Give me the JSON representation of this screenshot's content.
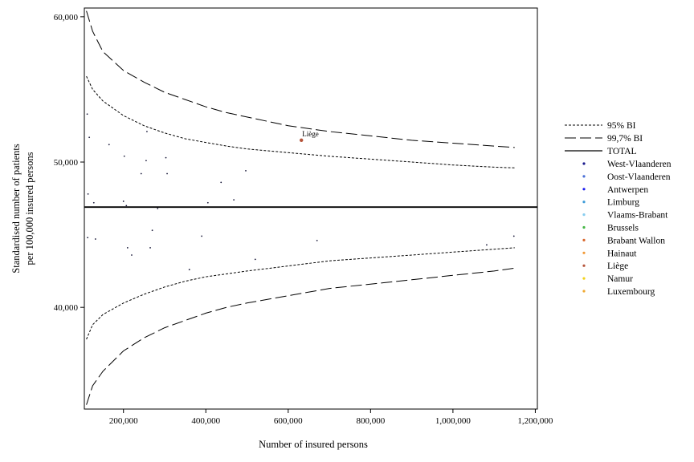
{
  "chart_data": {
    "type": "scatter",
    "xlabel": "Number of insured persons",
    "ylabel_lines": [
      "Standardised number of patients",
      "per 100,000 insured persons"
    ],
    "xlim": [
      105000,
      1205000
    ],
    "ylim": [
      33000,
      60600
    ],
    "x_ticks": [
      200000,
      400000,
      600000,
      800000,
      1000000,
      1200000
    ],
    "x_tick_labels": [
      "200,000",
      "400,000",
      "600,000",
      "800,000",
      "1,000,000",
      "1,200,000"
    ],
    "y_ticks": [
      40000,
      50000,
      60000
    ],
    "y_tick_labels": [
      "40,000",
      "50,000",
      "60,000"
    ],
    "total_value": 46900,
    "reference_lines": {
      "x": [
        110000,
        125000,
        150000,
        200000,
        250000,
        300000,
        350000,
        400000,
        450000,
        500000,
        600000,
        700000,
        800000,
        900000,
        1000000,
        1100000,
        1150000
      ],
      "upper_99_7": [
        60400,
        59000,
        57600,
        56300,
        55500,
        54800,
        54300,
        53800,
        53400,
        53100,
        52500,
        52100,
        51800,
        51500,
        51300,
        51100,
        51000
      ],
      "upper_95": [
        55900,
        55000,
        54200,
        53200,
        52500,
        52000,
        51600,
        51350,
        51100,
        50900,
        50650,
        50400,
        50200,
        50000,
        49800,
        49650,
        49600
      ],
      "lower_95": [
        37800,
        38800,
        39500,
        40300,
        40900,
        41400,
        41800,
        42100,
        42300,
        42500,
        42850,
        43200,
        43400,
        43600,
        43800,
        44000,
        44100
      ],
      "lower_99_7": [
        33300,
        34600,
        35600,
        37000,
        37900,
        38600,
        39100,
        39600,
        40000,
        40300,
        40800,
        41300,
        41600,
        41900,
        42200,
        42500,
        42700
      ]
    },
    "points": [
      {
        "x": 112000,
        "y": 53300
      },
      {
        "x": 117000,
        "y": 51700
      },
      {
        "x": 114000,
        "y": 47800
      },
      {
        "x": 128000,
        "y": 47200
      },
      {
        "x": 113000,
        "y": 44800
      },
      {
        "x": 132000,
        "y": 44700
      },
      {
        "x": 165000,
        "y": 51200
      },
      {
        "x": 202000,
        "y": 50400
      },
      {
        "x": 200000,
        "y": 47300
      },
      {
        "x": 207000,
        "y": 47000
      },
      {
        "x": 210000,
        "y": 44100
      },
      {
        "x": 220000,
        "y": 43600
      },
      {
        "x": 243000,
        "y": 49200
      },
      {
        "x": 255000,
        "y": 50100
      },
      {
        "x": 257000,
        "y": 52100
      },
      {
        "x": 265000,
        "y": 44100
      },
      {
        "x": 270000,
        "y": 45300
      },
      {
        "x": 283000,
        "y": 46800
      },
      {
        "x": 303000,
        "y": 50300
      },
      {
        "x": 306000,
        "y": 49200
      },
      {
        "x": 360000,
        "y": 42600
      },
      {
        "x": 390000,
        "y": 44900
      },
      {
        "x": 405000,
        "y": 47200
      },
      {
        "x": 437000,
        "y": 48600
      },
      {
        "x": 468000,
        "y": 47400
      },
      {
        "x": 497000,
        "y": 49400
      },
      {
        "x": 520000,
        "y": 43300
      },
      {
        "x": 632000,
        "y": 51500,
        "highlight": true
      },
      {
        "x": 670000,
        "y": 44600
      },
      {
        "x": 1082000,
        "y": 44300
      },
      {
        "x": 1148000,
        "y": 44900
      }
    ],
    "annotation": {
      "text": "Liège",
      "x": 632000,
      "y": 51500
    },
    "legend_position": "right",
    "legend": {
      "lines": [
        {
          "label": "95% BI",
          "style": "dotted"
        },
        {
          "label": "99,7% BI",
          "style": "dashed"
        },
        {
          "label": "TOTAL",
          "style": "solid"
        }
      ],
      "markers": [
        {
          "label": "West-Vlaanderen",
          "color": "#1a1a8c"
        },
        {
          "label": "Oost-Vlaanderen",
          "color": "#4a6fd6"
        },
        {
          "label": "Antwerpen",
          "color": "#1c1cf0"
        },
        {
          "label": "Limburg",
          "color": "#3d9bd8"
        },
        {
          "label": "Vlaams-Brabant",
          "color": "#87cdf0"
        },
        {
          "label": "Brussels",
          "color": "#45b645"
        },
        {
          "label": "Brabant Wallon",
          "color": "#d9662b"
        },
        {
          "label": "Hainaut",
          "color": "#f29a38"
        },
        {
          "label": "Liège",
          "color": "#b5543a"
        },
        {
          "label": "Namur",
          "color": "#f2d21a"
        },
        {
          "label": "Luxembourg",
          "color": "#f0a830"
        }
      ]
    }
  }
}
